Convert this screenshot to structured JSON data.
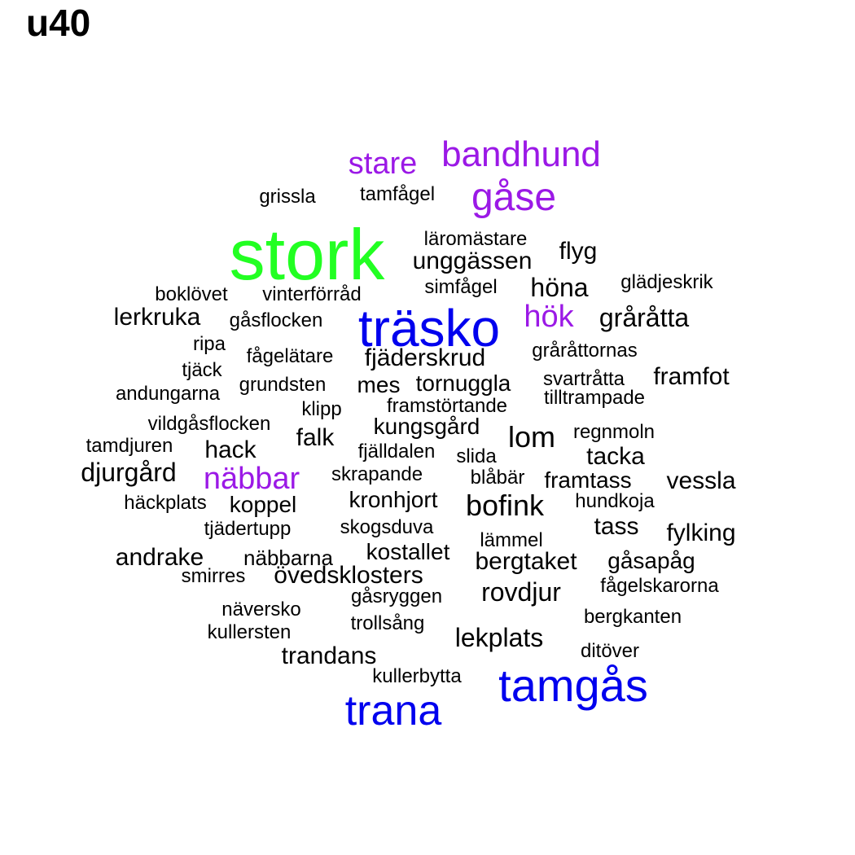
{
  "title": "u40",
  "colors": {
    "green": "#22ff22",
    "blue": "#0000ee",
    "purple": "#9b19e6",
    "black": "#000000"
  },
  "words": [
    {
      "text": "stork",
      "color": "green"
    },
    {
      "text": "träsko",
      "color": "blue"
    },
    {
      "text": "tamgås",
      "color": "blue"
    },
    {
      "text": "trana",
      "color": "blue"
    },
    {
      "text": "bandhund",
      "color": "purple"
    },
    {
      "text": "stare",
      "color": "purple"
    },
    {
      "text": "gåse",
      "color": "purple"
    },
    {
      "text": "hök",
      "color": "purple"
    },
    {
      "text": "näbbar",
      "color": "purple"
    },
    {
      "text": "grissla",
      "color": "black"
    },
    {
      "text": "tamfågel",
      "color": "black"
    },
    {
      "text": "läromästare",
      "color": "black"
    },
    {
      "text": "flyg",
      "color": "black"
    },
    {
      "text": "unggässen",
      "color": "black"
    },
    {
      "text": "glädjeskrik",
      "color": "black"
    },
    {
      "text": "simfågel",
      "color": "black"
    },
    {
      "text": "höna",
      "color": "black"
    },
    {
      "text": "boklövet",
      "color": "black"
    },
    {
      "text": "vinterförråd",
      "color": "black"
    },
    {
      "text": "lerkruka",
      "color": "black"
    },
    {
      "text": "gåsflocken",
      "color": "black"
    },
    {
      "text": "gråråtta",
      "color": "black"
    },
    {
      "text": "ripa",
      "color": "black"
    },
    {
      "text": "fågelätare",
      "color": "black"
    },
    {
      "text": "fjäderskrud",
      "color": "black"
    },
    {
      "text": "gråråttornas",
      "color": "black"
    },
    {
      "text": "tjäck",
      "color": "black"
    },
    {
      "text": "grundsten",
      "color": "black"
    },
    {
      "text": "mes",
      "color": "black"
    },
    {
      "text": "tornuggla",
      "color": "black"
    },
    {
      "text": "svartråtta",
      "color": "black"
    },
    {
      "text": "framfot",
      "color": "black"
    },
    {
      "text": "andungarna",
      "color": "black"
    },
    {
      "text": "klipp",
      "color": "black"
    },
    {
      "text": "framstörtande",
      "color": "black"
    },
    {
      "text": "tilltrampade",
      "color": "black"
    },
    {
      "text": "vildgåsflocken",
      "color": "black"
    },
    {
      "text": "kungsgård",
      "color": "black"
    },
    {
      "text": "lom",
      "color": "black"
    },
    {
      "text": "regnmoln",
      "color": "black"
    },
    {
      "text": "tamdjuren",
      "color": "black"
    },
    {
      "text": "hack",
      "color": "black"
    },
    {
      "text": "falk",
      "color": "black"
    },
    {
      "text": "fjälldalen",
      "color": "black"
    },
    {
      "text": "slida",
      "color": "black"
    },
    {
      "text": "tacka",
      "color": "black"
    },
    {
      "text": "djurgård",
      "color": "black"
    },
    {
      "text": "skrapande",
      "color": "black"
    },
    {
      "text": "blåbär",
      "color": "black"
    },
    {
      "text": "framtass",
      "color": "black"
    },
    {
      "text": "vessla",
      "color": "black"
    },
    {
      "text": "häckplats",
      "color": "black"
    },
    {
      "text": "koppel",
      "color": "black"
    },
    {
      "text": "kronhjort",
      "color": "black"
    },
    {
      "text": "bofink",
      "color": "black"
    },
    {
      "text": "hundkoja",
      "color": "black"
    },
    {
      "text": "tjädertupp",
      "color": "black"
    },
    {
      "text": "skogsduva",
      "color": "black"
    },
    {
      "text": "tass",
      "color": "black"
    },
    {
      "text": "fylking",
      "color": "black"
    },
    {
      "text": "lämmel",
      "color": "black"
    },
    {
      "text": "andrake",
      "color": "black"
    },
    {
      "text": "näbbarna",
      "color": "black"
    },
    {
      "text": "kostallet",
      "color": "black"
    },
    {
      "text": "bergtaket",
      "color": "black"
    },
    {
      "text": "gåsapåg",
      "color": "black"
    },
    {
      "text": "smirres",
      "color": "black"
    },
    {
      "text": "övedsklosters",
      "color": "black"
    },
    {
      "text": "fågelskarorna",
      "color": "black"
    },
    {
      "text": "gåsryggen",
      "color": "black"
    },
    {
      "text": "rovdjur",
      "color": "black"
    },
    {
      "text": "näversko",
      "color": "black"
    },
    {
      "text": "bergkanten",
      "color": "black"
    },
    {
      "text": "kullersten",
      "color": "black"
    },
    {
      "text": "trollsång",
      "color": "black"
    },
    {
      "text": "lekplats",
      "color": "black"
    },
    {
      "text": "ditöver",
      "color": "black"
    },
    {
      "text": "trandans",
      "color": "black"
    },
    {
      "text": "kullerbytta",
      "color": "black"
    }
  ]
}
